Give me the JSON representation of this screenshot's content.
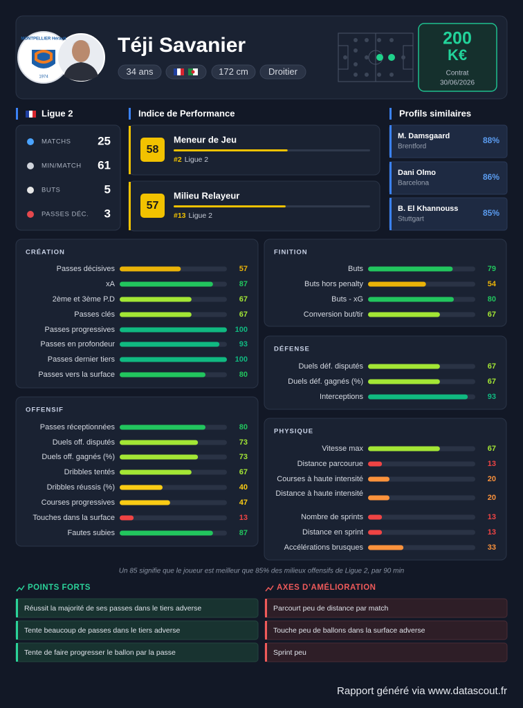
{
  "header": {
    "club_logo": {
      "text": "MONTPELLIER Hérault",
      "year": "1974"
    },
    "name": "Téji Savanier",
    "tags": [
      "34 ans",
      "172 cm",
      "Droitier"
    ],
    "market_value": {
      "amount": 200,
      "unit": "K€",
      "contract_label": "Contrat",
      "contract_end": "30/06/2026"
    }
  },
  "league": {
    "name": "Ligue 2",
    "stats": [
      {
        "label": "MATCHS",
        "value": 25
      },
      {
        "label": "MIN/MATCH",
        "value": 61
      },
      {
        "label": "BUTS",
        "value": 5
      },
      {
        "label": "PASSES DÉC.",
        "value": 3
      }
    ]
  },
  "performance": {
    "title": "Indice de Performance",
    "roles": [
      {
        "score": 58,
        "name": "Meneur de Jeu",
        "rank": "#2",
        "league": "Ligue 2"
      },
      {
        "score": 57,
        "name": "Milieu Relayeur",
        "rank": "#13",
        "league": "Ligue 2"
      }
    ]
  },
  "similar": {
    "title": "Profils similaires",
    "players": [
      {
        "name": "M. Damsgaard",
        "club": "Brentford",
        "similarity": "88%"
      },
      {
        "name": "Dani Olmo",
        "club": "Barcelona",
        "similarity": "86%"
      },
      {
        "name": "B. El Khannouss",
        "club": "Stuttgart",
        "similarity": "85%"
      }
    ]
  },
  "sections": [
    {
      "title": "CRÉATION",
      "metrics": [
        {
          "label": "Passes décisives",
          "value": 57
        },
        {
          "label": "xA",
          "value": 87
        },
        {
          "label": "2ème et 3ème P.D",
          "value": 67
        },
        {
          "label": "Passes clés",
          "value": 67
        },
        {
          "label": "Passes progressives",
          "value": 100
        },
        {
          "label": "Passes en profondeur",
          "value": 93
        },
        {
          "label": "Passes dernier tiers",
          "value": 100
        },
        {
          "label": "Passes vers la surface",
          "value": 80
        }
      ]
    },
    {
      "title": "OFFENSIF",
      "metrics": [
        {
          "label": "Passes réceptionnées",
          "value": 80
        },
        {
          "label": "Duels off. disputés",
          "value": 73
        },
        {
          "label": "Duels off. gagnés (%)",
          "value": 73
        },
        {
          "label": "Dribbles tentés",
          "value": 67
        },
        {
          "label": "Dribbles réussis (%)",
          "value": 40
        },
        {
          "label": "Courses progressives",
          "value": 47
        },
        {
          "label": "Touches dans la surface",
          "value": 13
        },
        {
          "label": "Fautes subies",
          "value": 87
        }
      ]
    },
    {
      "title": "FINITION",
      "metrics": [
        {
          "label": "Buts",
          "value": 79
        },
        {
          "label": "Buts hors penalty",
          "value": 54
        },
        {
          "label": "Buts - xG",
          "value": 80
        },
        {
          "label": "Conversion but/tir",
          "value": 67
        }
      ]
    },
    {
      "title": "DÉFENSE",
      "metrics": [
        {
          "label": "Duels déf. disputés",
          "value": 67
        },
        {
          "label": "Duels déf. gagnés (%)",
          "value": 67
        },
        {
          "label": "Interceptions",
          "value": 93
        }
      ]
    },
    {
      "title": "PHYSIQUE",
      "metrics": [
        {
          "label": "Vitesse max",
          "value": 67
        },
        {
          "label": "Distance parcourue",
          "value": 13
        },
        {
          "label": "Courses à haute intensité",
          "value": 20
        },
        {
          "label": "Distance à haute intensité",
          "value": 20
        },
        {
          "label": "Nombre de sprints",
          "value": 13
        },
        {
          "label": "Distance en sprint",
          "value": 13
        },
        {
          "label": "Accélérations brusques",
          "value": 33
        }
      ]
    }
  ],
  "note": "Un 85 signifie que le joueur est meilleur que 85% des milieux offensifs de Ligue 2, par 90 min",
  "strengths": {
    "title": "POINTS FORTS",
    "items": [
      "Réussit la majorité de ses passes dans le tiers adverse",
      "Tente beaucoup de passes dans le tiers adverse",
      "Tente de faire progresser le ballon par la passe"
    ]
  },
  "improvements": {
    "title": "AXES D’AMÉLIORATION",
    "items": [
      "Parcourt peu de distance par match",
      "Touche peu de ballons dans la surface adverse",
      "Sprint peu"
    ]
  },
  "footer": "Rapport généré via www.datascout.fr"
}
